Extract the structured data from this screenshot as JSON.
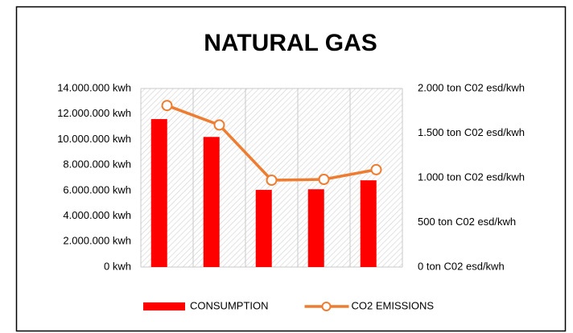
{
  "chart_data": {
    "type": "bar",
    "title": "NATURAL GAS",
    "categories": [
      null,
      null,
      null,
      null,
      null
    ],
    "series": [
      {
        "name": "CONSUMPTION",
        "type": "bar",
        "color": "#ff0000",
        "values": [
          11600000,
          10200000,
          6050000,
          6100000,
          6800000
        ]
      },
      {
        "name": "CO2 EMISSIONS",
        "type": "line",
        "axis": "y2",
        "color": "#ed7d31",
        "values": [
          1809,
          1591,
          973,
          982,
          1091
        ]
      }
    ],
    "ylim": [
      0,
      14000000
    ],
    "yticks": [
      {
        "value": 0,
        "label": "0 kwh"
      },
      {
        "value": 2000000,
        "label": "2.000.000 kwh"
      },
      {
        "value": 4000000,
        "label": "4.000.000 kwh"
      },
      {
        "value": 6000000,
        "label": "6.000.000 kwh"
      },
      {
        "value": 8000000,
        "label": "8.000.000 kwh"
      },
      {
        "value": 10000000,
        "label": "10.000.000 kwh"
      },
      {
        "value": 12000000,
        "label": "12.000.000 kwh"
      },
      {
        "value": 14000000,
        "label": "14.000.000 kwh"
      }
    ],
    "y2lim": [
      0,
      2000
    ],
    "y2ticks": [
      {
        "value": 0,
        "label": "0 ton C02 esd/kwh"
      },
      {
        "value": 500,
        "label": "500 ton C02 esd/kwh"
      },
      {
        "value": 1000,
        "label": "1.000 ton C02 esd/kwh"
      },
      {
        "value": 1500,
        "label": "1.500 ton C02 esd/kwh"
      },
      {
        "value": 2000,
        "label": "2.000 ton C02 esd/kwh"
      }
    ],
    "legend": "bottom"
  }
}
